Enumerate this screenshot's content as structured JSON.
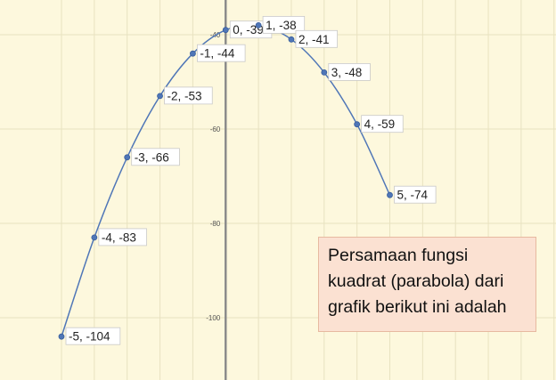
{
  "chart_data": {
    "type": "line",
    "title": "",
    "xlabel": "",
    "ylabel": "",
    "xlim": [
      -5.3,
      5.0
    ],
    "ylim": [
      -111,
      -35.4
    ],
    "y_ticks": [
      -40,
      -60,
      -80,
      -100
    ],
    "y_tick_labels": [
      "-40",
      "-60",
      "-80",
      "-100"
    ],
    "grid": true,
    "smooth": true,
    "series": [
      {
        "x": [
          -5,
          -4,
          -3,
          -2,
          -1,
          0,
          1,
          2,
          3,
          4,
          5
        ],
        "y": [
          -104,
          -83,
          -66,
          -53,
          -44,
          -39,
          -38,
          -41,
          -48,
          -59,
          -74
        ],
        "labels": [
          "-5, -104",
          "-4, -83",
          "-3, -66",
          "-2, -53",
          "-1, -44",
          "0, -39",
          "1, -38",
          "2, -41",
          "3, -48",
          "4, -59",
          "5, -74"
        ]
      }
    ],
    "colors": {
      "background": "#fdf8dd",
      "grid": "#e8e2c0",
      "axis": "#8c8c8c",
      "line": "#4f76b7"
    }
  },
  "note": {
    "lines": [
      "Persamaan fungsi",
      "kuadrat (parabola) dari",
      "grafik berikut ini adalah"
    ]
  }
}
